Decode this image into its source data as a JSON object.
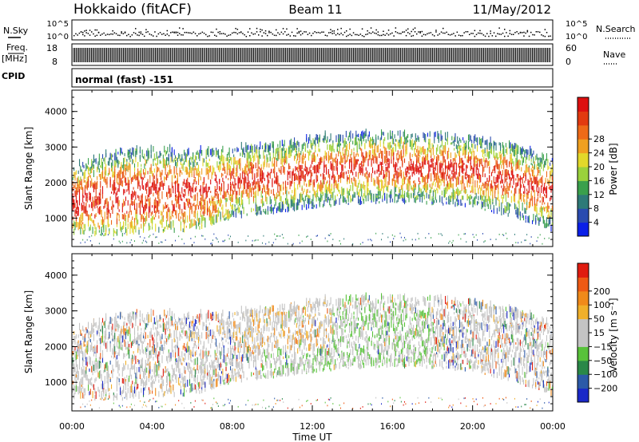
{
  "header": {
    "station": "Hokkaido (fitACF)",
    "beam": "Beam 11",
    "date": "11/May/2012"
  },
  "aux_panels": {
    "nsky_label": "N.Sky",
    "nsearch_label": "N.Search",
    "noise_ticks": [
      "10^5",
      "10^0"
    ],
    "freq_label": "Freq.",
    "freq_unit": "[MHz]",
    "freq_ticks": [
      "18",
      "8"
    ],
    "nave_label": "Nave",
    "nave_ticks": [
      "60",
      "0"
    ],
    "cpid_label": "CPID",
    "cpid_value": "normal (fast) -151"
  },
  "chart_data": [
    {
      "type": "heatmap",
      "panel": "power",
      "ylabel": "Slant Range [km]",
      "xlabel": "",
      "ylim": [
        200,
        4600
      ],
      "yticks": [
        1000,
        2000,
        3000,
        4000
      ],
      "xlim": [
        0,
        24
      ],
      "colorbar": {
        "label": "Power [dB]",
        "ticks": [
          "4",
          "8",
          "12",
          "16",
          "20",
          "24",
          "28"
        ],
        "colors": [
          "#0a1fe8",
          "#2a4bb0",
          "#2e7a78",
          "#3aa04c",
          "#9ad13c",
          "#e2d82a",
          "#f0a020",
          "#ee6a18",
          "#e23a10",
          "#dd1010"
        ]
      },
      "echo_region": {
        "description_points_hours": [
          0,
          2,
          4,
          6,
          8,
          10,
          12,
          14,
          16,
          18,
          20,
          22,
          24
        ],
        "upper_edge_km": [
          2400,
          2800,
          2900,
          2800,
          2900,
          3000,
          3200,
          3300,
          3350,
          3300,
          3200,
          3000,
          2600
        ],
        "lower_edge_km": [
          500,
          450,
          550,
          600,
          950,
          1100,
          1250,
          1350,
          1400,
          1350,
          1250,
          1000,
          600
        ]
      }
    },
    {
      "type": "heatmap",
      "panel": "velocity",
      "ylabel": "Slant Range [km]",
      "xlabel": "Time UT",
      "ylim": [
        200,
        4600
      ],
      "yticks": [
        1000,
        2000,
        3000,
        4000
      ],
      "xlim": [
        0,
        24
      ],
      "xticks": [
        "00:00",
        "04:00",
        "08:00",
        "12:00",
        "16:00",
        "20:00",
        "00:00"
      ],
      "colorbar": {
        "label": "Velocity [m s⁻¹]",
        "ticks": [
          "200",
          "100",
          "50",
          "15",
          "−15",
          "−50",
          "−100",
          "−200"
        ],
        "colors": [
          "#1a28c8",
          "#2c5aa8",
          "#2a8848",
          "#58c23a",
          "#c4c4c4",
          "#c4c4c4",
          "#f0b02a",
          "#f08a1a",
          "#ee5a14",
          "#e01c10"
        ]
      }
    }
  ]
}
